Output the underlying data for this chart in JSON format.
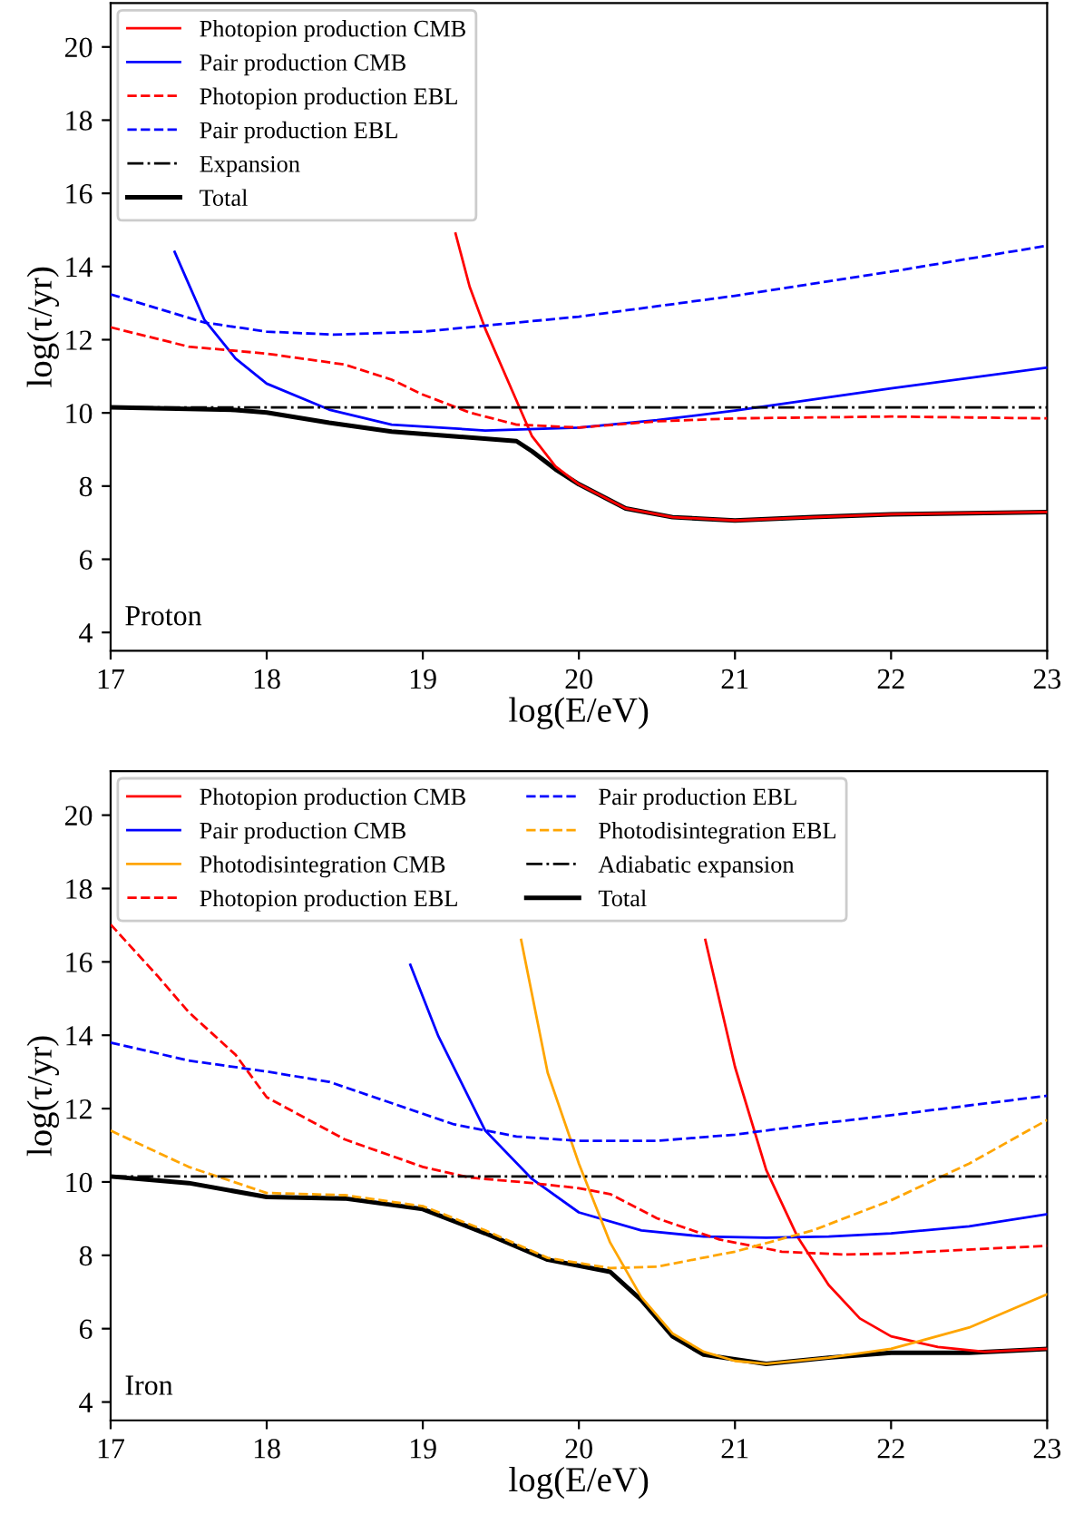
{
  "chart_data": [
    {
      "type": "line",
      "xlabel": "log(E/eV)",
      "ylabel": "log(τ/yr)",
      "xlim": [
        17,
        23
      ],
      "ylim": [
        3.5,
        21.2
      ],
      "xticks": [
        17,
        18,
        19,
        20,
        21,
        22,
        23
      ],
      "yticks": [
        4,
        6,
        8,
        10,
        12,
        14,
        16,
        18,
        20
      ],
      "grid": false,
      "legend": "top left",
      "annotations": [
        "Proton"
      ],
      "series": [
        {
          "name": "Photopion production CMB",
          "color": "#ff0000",
          "line_style": "solid",
          "x": [
            19.21,
            19.3,
            19.4,
            19.6,
            19.7,
            19.85,
            20.0,
            20.3,
            20.6,
            21.0,
            21.5,
            22.0,
            23.0
          ],
          "values": [
            14.9,
            13.45,
            12.3,
            10.34,
            9.36,
            8.54,
            8.05,
            7.39,
            7.15,
            7.06,
            7.15,
            7.23,
            7.29
          ]
        },
        {
          "name": "Pair production CMB",
          "color": "#0000ff",
          "line_style": "solid",
          "x": [
            17.41,
            17.49,
            17.6,
            17.8,
            18.0,
            18.4,
            18.8,
            19.4,
            20.0,
            20.5,
            21.0,
            22.0,
            23.0
          ],
          "values": [
            14.4,
            13.62,
            12.55,
            11.49,
            10.8,
            10.09,
            9.68,
            9.52,
            9.6,
            9.8,
            10.06,
            10.67,
            11.24
          ]
        },
        {
          "name": "Photopion production EBL",
          "color": "#ff0000",
          "line_style": "dashed",
          "x": [
            17.0,
            17.5,
            18.0,
            18.5,
            18.8,
            19.0,
            19.3,
            19.6,
            20.0,
            20.5,
            21.0,
            22.0,
            23.0
          ],
          "values": [
            12.34,
            11.81,
            11.62,
            11.32,
            10.91,
            10.5,
            10.01,
            9.68,
            9.6,
            9.77,
            9.85,
            9.9,
            9.85
          ]
        },
        {
          "name": "Pair production EBL",
          "color": "#0000ff",
          "line_style": "dashed",
          "x": [
            17.0,
            17.6,
            18.0,
            18.43,
            19.0,
            20.0,
            21.0,
            22.0,
            23.0
          ],
          "values": [
            13.24,
            12.47,
            12.22,
            12.14,
            12.22,
            12.63,
            13.2,
            13.86,
            14.57
          ]
        },
        {
          "name": "Expansion",
          "color": "#000000",
          "line_style": "dashdot",
          "x": [
            17,
            23
          ],
          "values": [
            10.15,
            10.15
          ]
        },
        {
          "name": "Total",
          "color": "#000000",
          "line_style": "solid",
          "x": [
            17.0,
            17.8,
            18.0,
            18.4,
            18.8,
            19.2,
            19.6,
            19.7,
            19.85,
            20.0,
            20.3,
            20.6,
            21.0,
            21.5,
            22.0,
            23.0
          ],
          "values": [
            10.15,
            10.08,
            10.01,
            9.73,
            9.49,
            9.36,
            9.23,
            8.95,
            8.46,
            8.05,
            7.39,
            7.15,
            7.06,
            7.15,
            7.23,
            7.29
          ]
        }
      ]
    },
    {
      "type": "line",
      "xlabel": "log(E/eV)",
      "ylabel": "log(τ/yr)",
      "xlim": [
        17,
        23
      ],
      "ylim": [
        3.5,
        21.2
      ],
      "xticks": [
        17,
        18,
        19,
        20,
        21,
        22,
        23
      ],
      "yticks": [
        4,
        6,
        8,
        10,
        12,
        14,
        16,
        18,
        20
      ],
      "grid": false,
      "legend": "top left",
      "annotations": [
        "Iron"
      ],
      "series": [
        {
          "name": "Photopion production CMB",
          "color": "#ff0000",
          "line_style": "solid",
          "x": [
            20.81,
            21.0,
            21.2,
            21.4,
            21.6,
            21.8,
            22.0,
            22.3,
            22.6,
            23.0
          ],
          "values": [
            16.6,
            13.14,
            10.33,
            8.51,
            7.19,
            6.28,
            5.79,
            5.5,
            5.37,
            5.45
          ]
        },
        {
          "name": "Pair production CMB",
          "color": "#0000ff",
          "line_style": "solid",
          "x": [
            18.92,
            19.1,
            19.4,
            19.7,
            20.0,
            20.4,
            20.8,
            21.2,
            21.6,
            22.0,
            22.5,
            23.0
          ],
          "values": [
            15.92,
            13.97,
            11.4,
            10.08,
            9.17,
            8.68,
            8.51,
            8.48,
            8.51,
            8.6,
            8.79,
            9.12
          ]
        },
        {
          "name": "Photodisintegration CMB",
          "color": "#ffa500",
          "line_style": "solid",
          "x": [
            19.63,
            19.8,
            20.0,
            20.2,
            20.4,
            20.6,
            20.8,
            21.0,
            21.2,
            21.6,
            22.0,
            22.5,
            23.0
          ],
          "values": [
            16.6,
            12.98,
            10.5,
            8.35,
            6.86,
            5.87,
            5.37,
            5.12,
            5.04,
            5.21,
            5.45,
            6.03,
            6.94
          ]
        },
        {
          "name": "Photopion production EBL",
          "color": "#ff0000",
          "line_style": "dashed",
          "x": [
            17.0,
            17.3,
            17.5,
            17.8,
            18.0,
            18.5,
            19.0,
            19.3,
            19.7,
            20.0,
            20.2,
            20.5,
            20.9,
            21.3,
            21.7,
            22.0,
            23.0
          ],
          "values": [
            17.02,
            15.62,
            14.63,
            13.47,
            12.31,
            11.16,
            10.41,
            10.12,
            9.97,
            9.83,
            9.67,
            9.01,
            8.43,
            8.1,
            8.02,
            8.05,
            8.26
          ]
        },
        {
          "name": "Pair production EBL",
          "color": "#0000ff",
          "line_style": "dashed",
          "x": [
            17.0,
            17.5,
            18.0,
            18.4,
            18.8,
            19.2,
            19.6,
            20.0,
            20.5,
            21.0,
            21.5,
            22.0,
            23.0
          ],
          "values": [
            13.8,
            13.31,
            13.01,
            12.73,
            12.15,
            11.57,
            11.24,
            11.12,
            11.12,
            11.29,
            11.57,
            11.82,
            12.35
          ]
        },
        {
          "name": "Photodisintegration EBL",
          "color": "#ffa500",
          "line_style": "dashed",
          "x": [
            17.0,
            17.5,
            18.0,
            18.5,
            19.0,
            19.4,
            19.8,
            20.2,
            20.5,
            21.0,
            21.5,
            22.0,
            22.5,
            23.0
          ],
          "values": [
            11.4,
            10.41,
            9.7,
            9.64,
            9.34,
            8.68,
            7.93,
            7.65,
            7.69,
            8.1,
            8.68,
            9.5,
            10.5,
            11.69
          ]
        },
        {
          "name": "Adiabatic expansion",
          "color": "#000000",
          "line_style": "dashdot",
          "x": [
            17,
            23
          ],
          "values": [
            10.15,
            10.15
          ]
        },
        {
          "name": "Total",
          "color": "#000000",
          "line_style": "solid",
          "x": [
            17.0,
            17.5,
            18.0,
            18.5,
            19.0,
            19.4,
            19.8,
            20.2,
            20.4,
            20.6,
            20.8,
            21.2,
            21.6,
            22.0,
            22.5,
            23.0
          ],
          "values": [
            10.15,
            9.97,
            9.59,
            9.55,
            9.26,
            8.6,
            7.88,
            7.55,
            6.78,
            5.79,
            5.29,
            5.04,
            5.21,
            5.34,
            5.34,
            5.45
          ]
        }
      ]
    }
  ]
}
